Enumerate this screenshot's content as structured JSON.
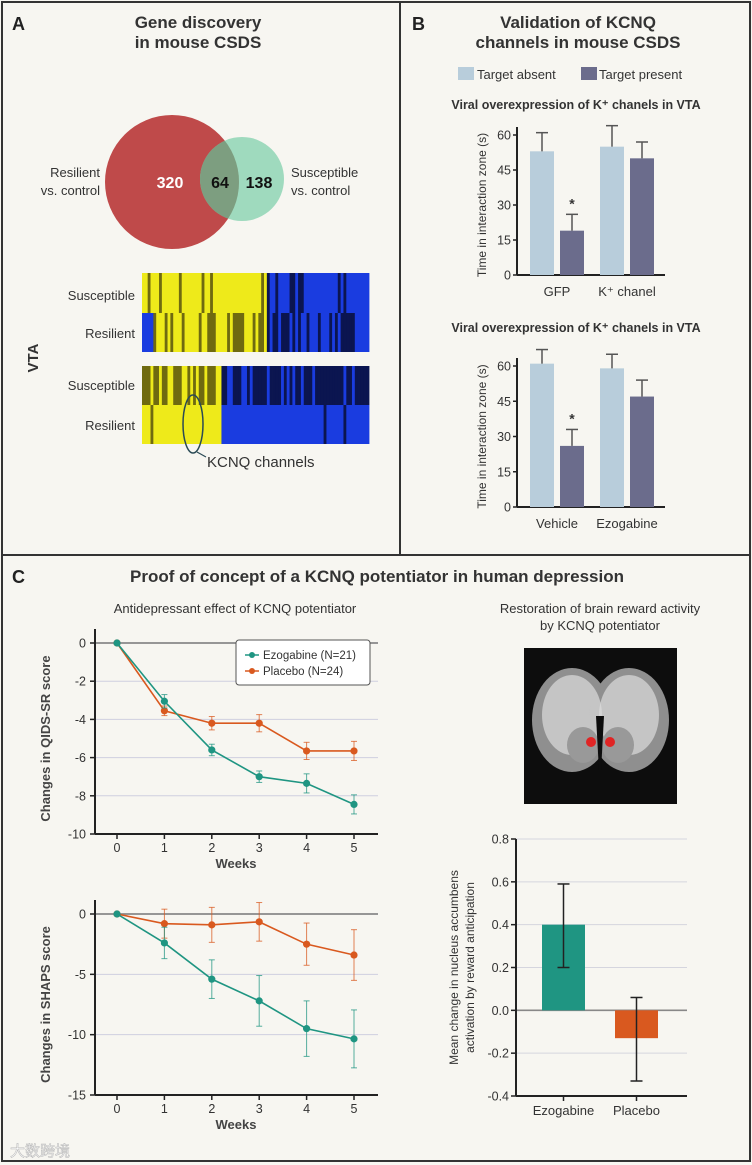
{
  "colors": {
    "background": "#f7f6f1",
    "venn_red": "#bf4a4a",
    "venn_green": "#8fd5b5",
    "venn_overlap": "#7d9e80",
    "bar_absent": "#b8cddb",
    "bar_present": "#6b6c8c",
    "ezogabine": "#1f9582",
    "placebo": "#d9591f",
    "heat_yellow": "#eeea1a",
    "heat_blue": "#1a3ce0"
  },
  "panel_a": {
    "label": "A",
    "title_line1": "Gene discovery",
    "title_line2": "in mouse CSDS",
    "venn": {
      "left_label_1": "Resilient",
      "left_label_2": "vs. control",
      "right_label_1": "Susceptible",
      "right_label_2": "vs. control",
      "left_only": "320",
      "overlap": "64",
      "right_only": "138"
    },
    "heatmap": {
      "region_label": "VTA",
      "rows": [
        "Susceptible",
        "Resilient",
        "Susceptible",
        "Resilient"
      ],
      "annotation": "KCNQ channels"
    }
  },
  "panel_b": {
    "label": "B",
    "title_line1": "Validation of KCNQ",
    "title_line2": "channels in mouse CSDS",
    "legend": [
      "Target absent",
      "Target present"
    ]
  },
  "panel_c": {
    "label": "C",
    "title": "Proof of concept of a KCNQ potentiator in human depression",
    "left_subtitle": "Antidepressant effect of KCNQ potentiator",
    "right_subtitle_1": "Restoration of brain reward activity",
    "right_subtitle_2": "by KCNQ potentiator",
    "legend": [
      "Ezogabine (N=21)",
      "Placebo (N=24)"
    ]
  },
  "watermark": "大数跨境",
  "chart_data": [
    {
      "id": "b1",
      "type": "bar",
      "title": "Viral overexpression of K⁺ chanels in VTA",
      "ylabel": "Time in interaction zone (s)",
      "ylim": [
        0,
        60
      ],
      "yticks": [
        "0",
        "15",
        "30",
        "45",
        "60"
      ],
      "categories": [
        "GFP",
        "K⁺ chanel"
      ],
      "series": [
        {
          "name": "Target absent",
          "values": [
            53,
            55
          ],
          "err_upper": [
            61,
            64
          ]
        },
        {
          "name": "Target present",
          "values": [
            19,
            50
          ],
          "err_upper": [
            26,
            57
          ]
        }
      ],
      "annotations": [
        {
          "category": "GFP",
          "series": "Target present",
          "text": "*"
        }
      ]
    },
    {
      "id": "b2",
      "type": "bar",
      "title": "Viral overexpression of K⁺ chanels in VTA",
      "ylabel": "Time in interaction zone (s)",
      "ylim": [
        0,
        60
      ],
      "yticks": [
        "0",
        "15",
        "30",
        "45",
        "60"
      ],
      "categories": [
        "Vehicle",
        "Ezogabine"
      ],
      "series": [
        {
          "name": "Target absent",
          "values": [
            61,
            59
          ],
          "err_upper": [
            67,
            65
          ]
        },
        {
          "name": "Target present",
          "values": [
            26,
            47
          ],
          "err_upper": [
            33,
            54
          ]
        }
      ],
      "annotations": [
        {
          "category": "Vehicle",
          "series": "Target present",
          "text": "*"
        }
      ]
    },
    {
      "id": "c1",
      "type": "line",
      "xlabel": "Weeks",
      "ylabel": "Changes in QIDS-SR score",
      "x": [
        0,
        1,
        2,
        3,
        4,
        5
      ],
      "xticks": [
        "0",
        "1",
        "2",
        "3",
        "4",
        "5"
      ],
      "ylim": [
        -10,
        0
      ],
      "yticks": [
        "0",
        "-2",
        "-4",
        "-6",
        "-8",
        "-10"
      ],
      "grid": true,
      "legend": "top-right",
      "series": [
        {
          "name": "Ezogabine (N=21)",
          "values": [
            0,
            -3.05,
            -5.6,
            -7.0,
            -7.35,
            -8.45
          ],
          "err": [
            0,
            0.35,
            0.3,
            0.3,
            0.5,
            0.5
          ]
        },
        {
          "name": "Placebo (N=24)",
          "values": [
            0,
            -3.55,
            -4.2,
            -4.2,
            -5.65,
            -5.65
          ],
          "err": [
            0,
            0.25,
            0.35,
            0.45,
            0.45,
            0.5
          ]
        }
      ]
    },
    {
      "id": "c2",
      "type": "line",
      "xlabel": "Weeks",
      "ylabel": "Changes in SHAPS score",
      "x": [
        0,
        1,
        2,
        3,
        4,
        5
      ],
      "xticks": [
        "0",
        "1",
        "2",
        "3",
        "4",
        "5"
      ],
      "ylim": [
        -15,
        0
      ],
      "yticks": [
        "0",
        "-5",
        "-10",
        "-15"
      ],
      "grid": true,
      "series": [
        {
          "name": "Ezogabine",
          "values": [
            0,
            -2.4,
            -5.4,
            -7.2,
            -9.5,
            -10.35
          ],
          "err": [
            0,
            1.3,
            1.6,
            2.1,
            2.3,
            2.4
          ]
        },
        {
          "name": "Placebo",
          "values": [
            0,
            -0.8,
            -0.9,
            -0.65,
            -2.5,
            -3.4
          ],
          "err": [
            0,
            1.2,
            1.45,
            1.6,
            1.75,
            2.1
          ]
        }
      ]
    },
    {
      "id": "c3",
      "type": "bar",
      "ylabel_1": "Mean change in nucleus accumbens",
      "ylabel_2": "activation by reward anticipation",
      "ylim": [
        -0.4,
        0.8
      ],
      "yticks": [
        "0.8",
        "0.6",
        "0.4",
        "0.2",
        "0.0",
        "-0.2",
        "-0.4"
      ],
      "grid": true,
      "categories": [
        "Ezogabine",
        "Placebo"
      ],
      "values": [
        0.4,
        -0.13
      ],
      "err_low": [
        0.2,
        -0.33
      ],
      "err_high": [
        0.59,
        0.06
      ]
    }
  ]
}
